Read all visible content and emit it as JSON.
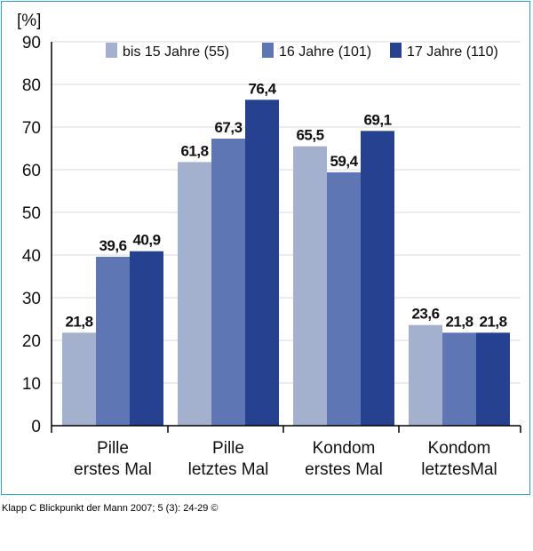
{
  "chart_data": {
    "type": "bar",
    "ylabel": "[%]",
    "ylim": [
      0,
      90
    ],
    "yticks": [
      0,
      10,
      20,
      30,
      40,
      50,
      60,
      70,
      80,
      90
    ],
    "categories": [
      [
        "Pille",
        "erstes Mal"
      ],
      [
        "Pille",
        "letztes Mal"
      ],
      [
        "Kondom",
        "erstes Mal"
      ],
      [
        "Kondom",
        "letztesMal"
      ]
    ],
    "series": [
      {
        "name": "bis 15 Jahre (55)",
        "color": "#a4b1ce",
        "values": [
          21.8,
          61.8,
          65.5,
          23.6
        ],
        "labels": [
          "21,8",
          "61,8",
          "65,5",
          "23,6"
        ]
      },
      {
        "name": "16 Jahre (101)",
        "color": "#5e77b4",
        "values": [
          39.6,
          67.3,
          59.4,
          21.8
        ],
        "labels": [
          "39,6",
          "67,3",
          "59,4",
          "21,8"
        ]
      },
      {
        "name": "17 Jahre (110)",
        "color": "#26418f",
        "values": [
          40.9,
          76.4,
          69.1,
          21.8
        ],
        "labels": [
          "40,9",
          "76,4",
          "69,1",
          "21,8"
        ]
      }
    ],
    "grid": true,
    "legend_position": "top"
  },
  "caption": "Klapp C Blickpunkt der Mann 2007; 5 (3): 24-29 ©"
}
